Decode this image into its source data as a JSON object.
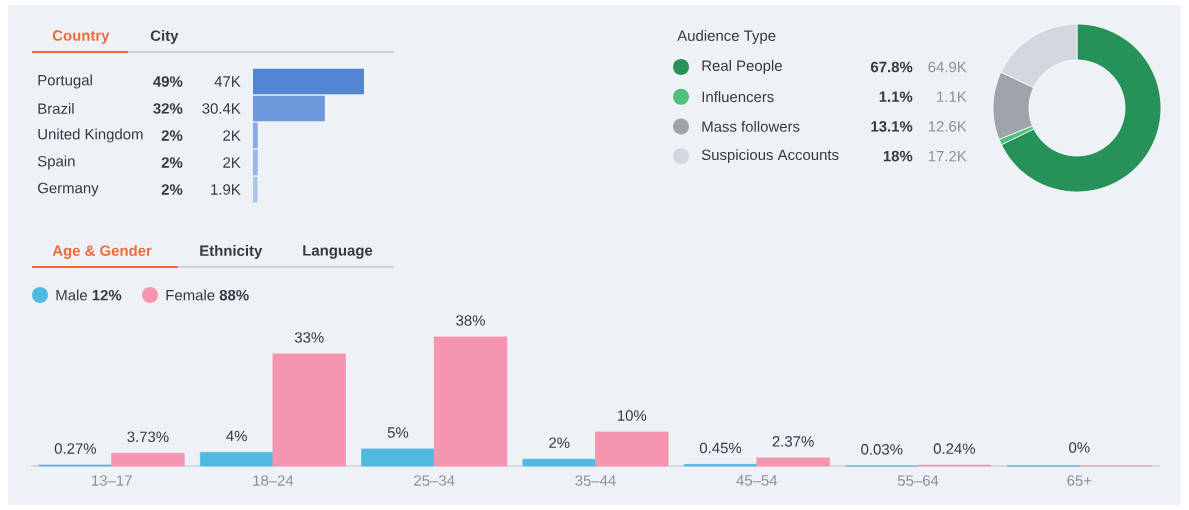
{
  "chart_data": [
    {
      "type": "bar",
      "orientation": "horizontal",
      "title": "Country",
      "categories": [
        "Portugal",
        "Brazil",
        "United Kingdom",
        "Spain",
        "Germany"
      ],
      "values": [
        47,
        30.4,
        2,
        2,
        1.9
      ],
      "value_labels": [
        "47K",
        "30.4K",
        "2K",
        "2K",
        "1.9K"
      ],
      "colors": [
        "#5286d3",
        "#6a98da",
        "#86abe2",
        "#97b7e7",
        "#a9c5ec"
      ],
      "annotations": [
        "City",
        "49%",
        "32%",
        "2%",
        "2%",
        "2%"
      ]
    },
    {
      "type": "donut",
      "title": "Audience Type",
      "categories": [
        "Real People",
        "Influencers",
        "Mass followers",
        "Suspicious Accounts"
      ],
      "values": [
        67.8,
        1.1,
        13.1,
        18
      ],
      "value_labels": [
        "67.8%",
        "1.1%",
        "13.1%",
        "18%"
      ],
      "colors": [
        "#27915a",
        "#4fc07e",
        "#9ea4aa",
        "#d3d8de"
      ],
      "legend": "left",
      "annotations": [
        "64.9K",
        "1.1K",
        "12.6K",
        "17.2K"
      ]
    },
    {
      "type": "bar",
      "title": "Age & Gender",
      "categories": [
        "13–17",
        "18–24",
        "25–34",
        "35–44",
        "45–54",
        "55–64",
        "65+"
      ],
      "legend": "top left",
      "series": [
        {
          "name": "Male **12%**",
          "color": "#4fb9e2",
          "values": [
            0.27,
            4,
            5,
            2,
            0.45,
            0.03,
            0
          ],
          "value_labels": [
            "0.27%",
            "4%",
            "5%",
            "2%",
            "0.45%",
            "0.03%",
            null
          ]
        },
        {
          "name": "Female **88%**",
          "color": "#f595b0",
          "values": [
            3.73,
            33,
            38,
            10,
            2.37,
            0.24,
            0
          ],
          "value_labels": [
            "3.73%",
            "33%",
            "38%",
            "10%",
            "2.37%",
            "0.24%",
            null
          ]
        }
      ],
      "annotations": [
        "Ethnicity",
        "Language",
        "0%"
      ]
    }
  ]
}
